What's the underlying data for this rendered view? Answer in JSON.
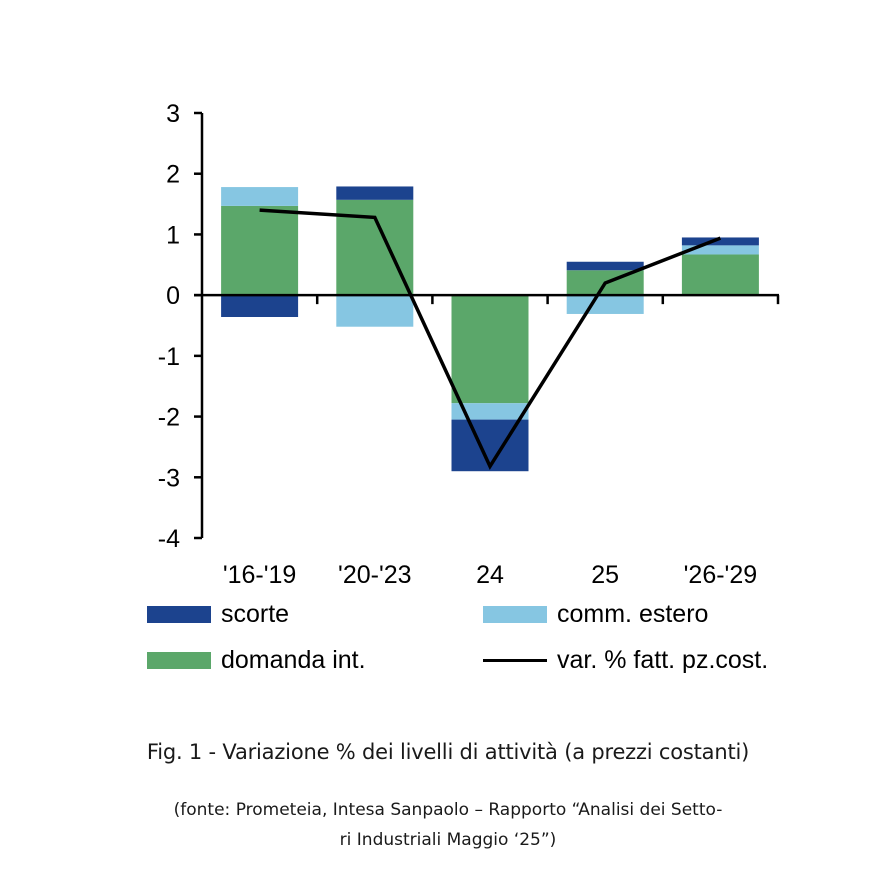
{
  "chart_data": {
    "type": "bar",
    "stacked": true,
    "title": "Fig. 1 - Variazione % dei livelli di attività (a prezzi costanti)",
    "subtitle": "(fonte: Prometeia, Intesa Sanpaolo – Rapporto “Analisi dei Setto-ri Industriali Maggio ‘25”)",
    "xlabel": "",
    "ylabel": "",
    "categories": [
      "'16-'19",
      "'20-'23",
      "24",
      "25",
      "'26-'29"
    ],
    "ylim": [
      -4,
      3
    ],
    "yticks": [
      3,
      2,
      1,
      0,
      -1,
      -2,
      -3,
      -4
    ],
    "grid": false,
    "legend_position": "bottom",
    "series": [
      {
        "name": "domanda int.",
        "type": "bar",
        "color": "#5ba76a",
        "values": [
          1.47,
          1.57,
          -1.78,
          0.41,
          0.67
        ]
      },
      {
        "name": "comm. estero",
        "type": "bar",
        "color": "#86c6e2",
        "values": [
          0.31,
          -0.52,
          -0.27,
          -0.31,
          0.15
        ]
      },
      {
        "name": "scorte",
        "type": "bar",
        "color": "#1c438e",
        "values": [
          -0.36,
          0.22,
          -0.85,
          0.14,
          0.13
        ]
      },
      {
        "name": "var. % fatt. pz.cost.",
        "type": "line",
        "color": "#000000",
        "values": [
          1.4,
          1.28,
          -2.82,
          0.2,
          0.94
        ]
      }
    ]
  },
  "legend": [
    {
      "label": "scorte",
      "kind": "swatch",
      "color": "#1c438e"
    },
    {
      "label": "comm. estero",
      "kind": "swatch",
      "color": "#86c6e2"
    },
    {
      "label": "domanda int.",
      "kind": "swatch",
      "color": "#5ba76a"
    },
    {
      "label": "var. % fatt. pz.cost.",
      "kind": "line",
      "color": "#000000"
    }
  ],
  "caption": {
    "title": "Fig. 1 - Variazione % dei livelli di attività (a prezzi costanti)",
    "source_line1": "(fonte: Prometeia, Intesa Sanpaolo – Rapporto “Analisi dei Setto-",
    "source_line2": "ri Industriali Maggio ‘25”)"
  }
}
